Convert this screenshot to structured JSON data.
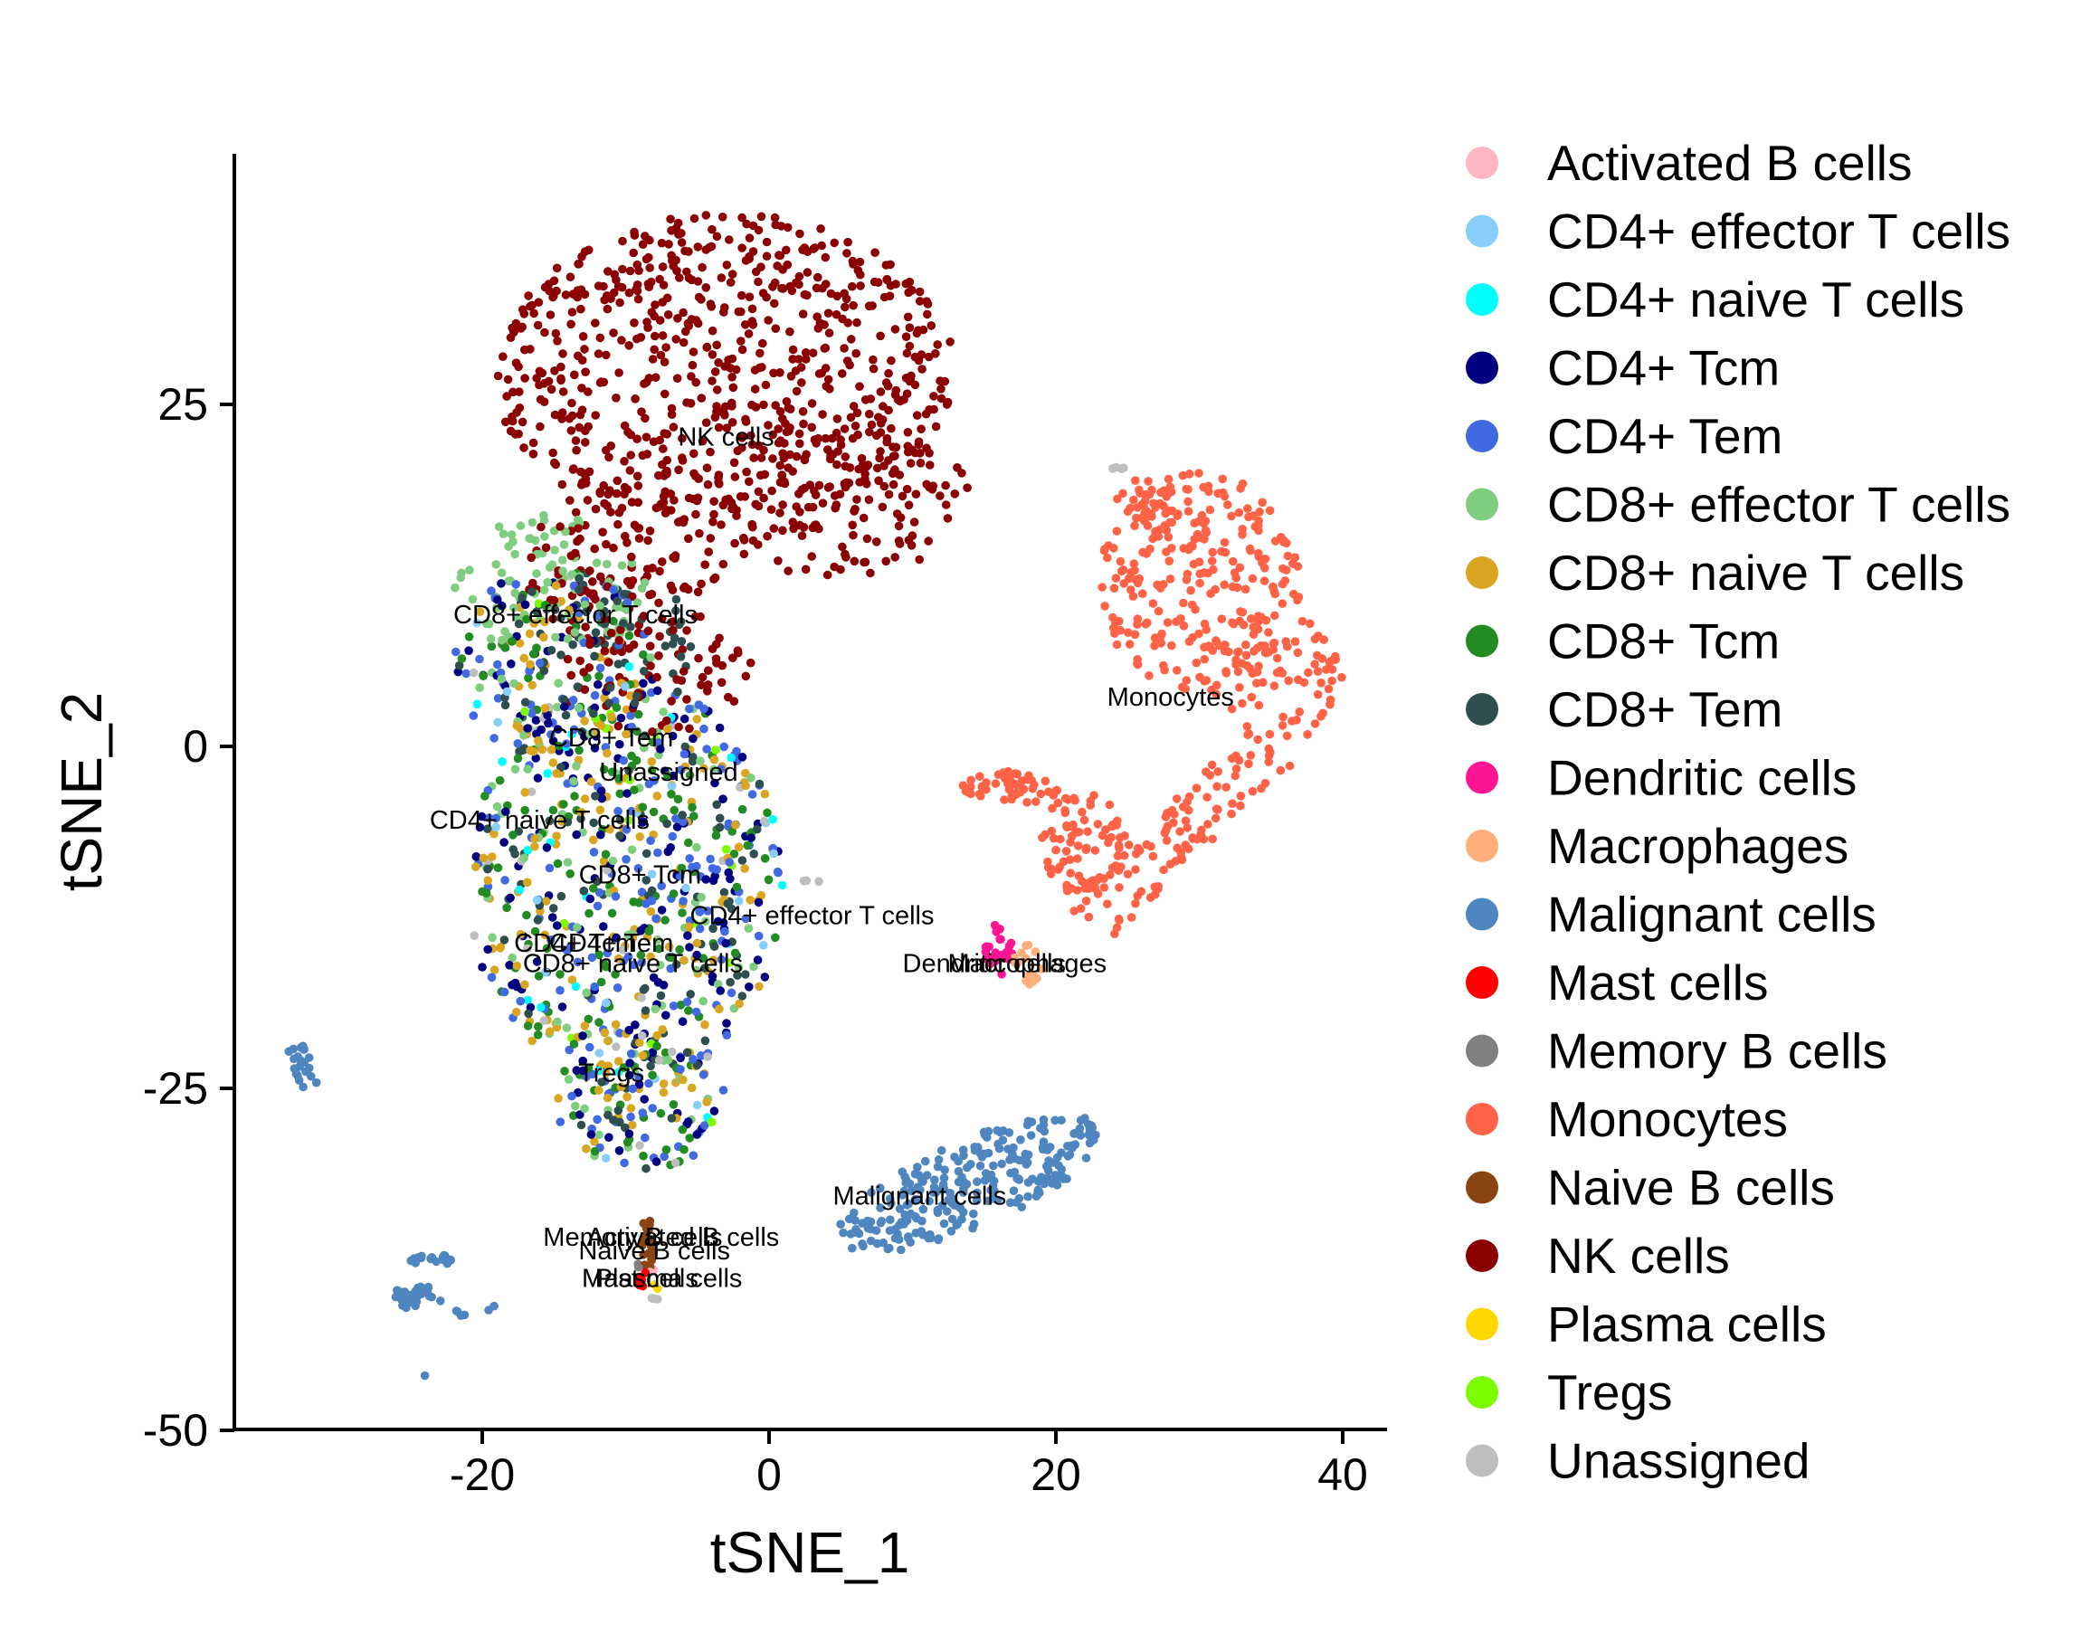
{
  "chart_data": {
    "type": "scatter",
    "xlabel": "tSNE_1",
    "ylabel": "tSNE_2",
    "xlim": [
      -37,
      43
    ],
    "ylim": [
      -50,
      43
    ],
    "x_ticks": [
      -20,
      0,
      20,
      40
    ],
    "x_tick_labels": [
      "-20",
      "0",
      "20",
      "40"
    ],
    "y_ticks": [
      -50,
      -25,
      0,
      25
    ],
    "y_tick_labels": [
      "-50",
      "-25",
      "0",
      "25"
    ],
    "grid": false,
    "legend_position": "right",
    "series": [
      {
        "name": "Activated B cells",
        "color": "#FFB6C1",
        "label_at": [
          -6,
          -36
        ]
      },
      {
        "name": "CD4+ effector T cells",
        "color": "#87CEFA",
        "label_at": [
          3,
          -12.5
        ]
      },
      {
        "name": "CD4+ naive T cells",
        "color": "#00FFFF",
        "label_at": [
          -16,
          -5.5
        ]
      },
      {
        "name": "CD4+ Tcm",
        "color": "#000080",
        "label_at": [
          -13.5,
          -14.5
        ]
      },
      {
        "name": "CD4+ Tem",
        "color": "#4169E1",
        "label_at": [
          -11,
          -14.5
        ]
      },
      {
        "name": "CD8+ effector T cells",
        "color": "#7FCD7F",
        "label_at": [
          -13.5,
          9.5
        ]
      },
      {
        "name": "CD8+ naive T cells",
        "color": "#DAA520",
        "label_at": [
          -9.5,
          -16
        ]
      },
      {
        "name": "CD8+ Tcm",
        "color": "#228B22",
        "label_at": [
          -9,
          -9.5
        ]
      },
      {
        "name": "CD8+ Tem",
        "color": "#2F4F4F",
        "label_at": [
          -11,
          0.5
        ]
      },
      {
        "name": "Dendritic cells",
        "color": "#FF1493",
        "label_at": [
          15,
          -16
        ]
      },
      {
        "name": "Macrophages",
        "color": "#FFB07A",
        "label_at": [
          18,
          -16
        ]
      },
      {
        "name": "Malignant cells",
        "color": "#4F86BF",
        "label_at": [
          10.5,
          -33
        ]
      },
      {
        "name": "Mast cells",
        "color": "#FF0000",
        "label_at": [
          -9,
          -39
        ]
      },
      {
        "name": "Memory B cells",
        "color": "#808080",
        "label_at": [
          -9.5,
          -36
        ]
      },
      {
        "name": "Monocytes",
        "color": "#FF6347",
        "label_at": [
          28,
          3.5
        ]
      },
      {
        "name": "Naive B cells",
        "color": "#8B4513",
        "label_at": [
          -8,
          -37
        ]
      },
      {
        "name": "NK cells",
        "color": "#8B0000",
        "label_at": [
          -3,
          22.5
        ]
      },
      {
        "name": "Plasma cells",
        "color": "#FFD700",
        "label_at": [
          -7,
          -39
        ]
      },
      {
        "name": "Tregs",
        "color": "#7CFC00",
        "label_at": [
          -11,
          -24
        ]
      },
      {
        "name": "Unassigned",
        "color": "#BEBEBE",
        "label_at": [
          -7,
          -2
        ]
      }
    ]
  }
}
